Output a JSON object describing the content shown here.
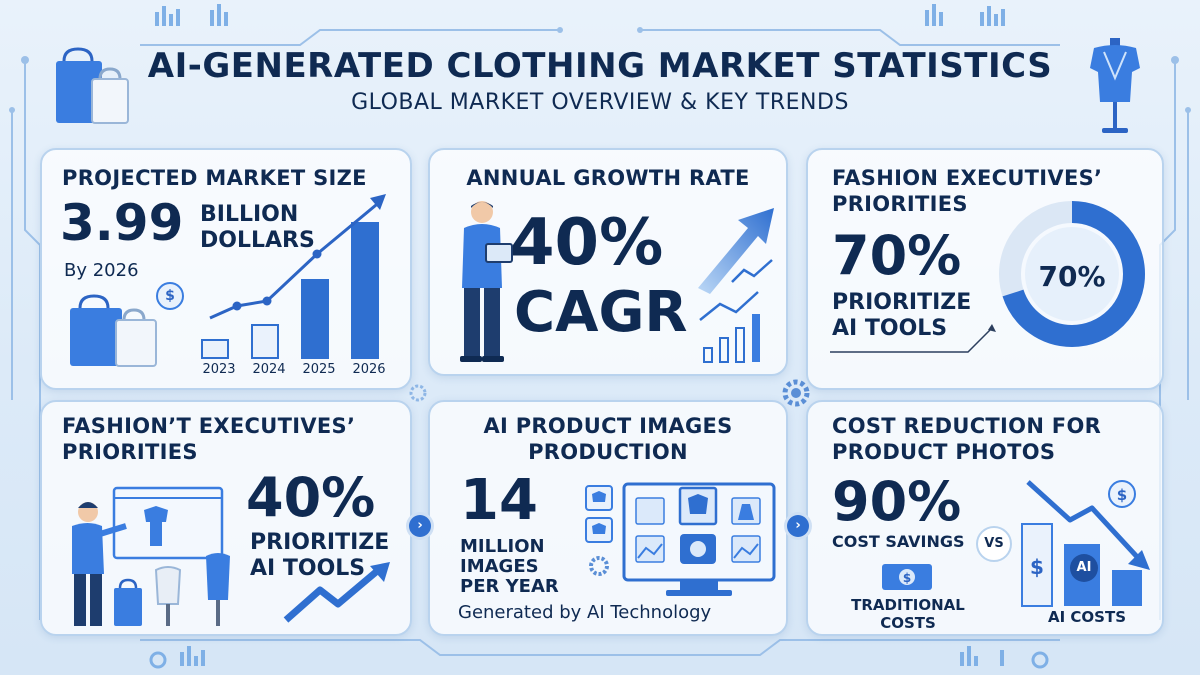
{
  "header": {
    "title": "AI-GENERATED CLOTHING MARKET STATISTICS",
    "subtitle": "GLOBAL MARKET OVERVIEW & KEY TRENDS"
  },
  "market_size": {
    "title": "PROJECTED MARKET SIZE",
    "value": "3.99",
    "unit_line1": "BILLION",
    "unit_line2": "DOLLARS",
    "date_note": "By 2026",
    "years": [
      "2023",
      "2024",
      "2025",
      "2026"
    ],
    "bar_levels": [
      0.12,
      0.22,
      0.52,
      0.9
    ]
  },
  "growth_rate": {
    "title": "ANNUAL GROWTH RATE",
    "value": "40%",
    "label": "CAGR"
  },
  "exec_priorities_1": {
    "title_line1": "FASHION EXECUTIVES’",
    "title_line2": "PRIORITIES",
    "value": "70%",
    "label_line1": "PRIORITIZE",
    "label_line2": "AI TOOLS",
    "ring_label": "70%",
    "ring_fraction": 0.7
  },
  "exec_priorities_2": {
    "title_line1": "FASHION’T EXECUTIVES’",
    "title_line2": "PRIORITIES",
    "value": "40%",
    "label_line1": "PRIORITIZE",
    "label_line2": "AI TOOLS"
  },
  "image_production": {
    "title_line1": "AI PRODUCT IMAGES",
    "title_line2": "PRODUCTION",
    "value": "14",
    "label_line1": "MILLION",
    "label_line2": "IMAGES",
    "label_line3": "PER YEAR",
    "footnote": "Generated by AI Technology"
  },
  "cost_reduction": {
    "title_line1": "COST REDUCTION FOR",
    "title_line2": "PRODUCT PHOTOS",
    "value": "90%",
    "label": "COST SAVINGS",
    "vs": "VS",
    "traditional_line1": "TRADITIONAL",
    "traditional_line2": "COSTS",
    "ai_costs": "AI COSTS",
    "ai_badge": "AI",
    "dollar": "$"
  },
  "icons": {
    "next": "›",
    "dollar": "$"
  },
  "colors": {
    "accent": "#2f6fd0",
    "accent_light": "#5aa0ec",
    "navy": "#0f2a52",
    "panel_border": "#b9d3ee"
  }
}
